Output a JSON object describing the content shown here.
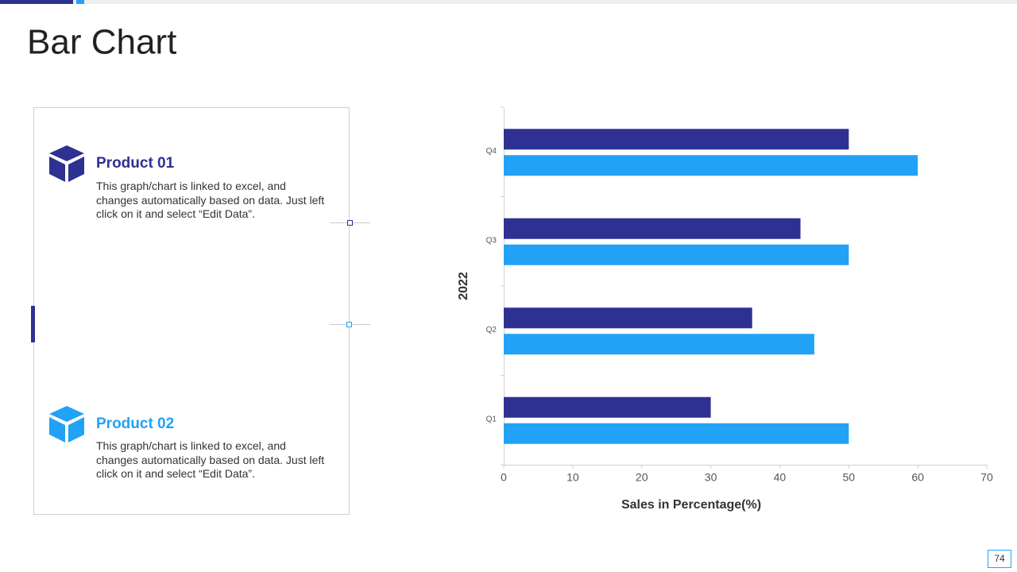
{
  "slide": {
    "title": "Bar Chart",
    "page_number": "74"
  },
  "products": [
    {
      "text": "This graph/chart is linked to excel, and changes automatically based on data. Just left click on it and select “Edit Data”."
    },
    {
      "text": "This graph/chart is linked to excel, and changes automatically based on data. Just left click on it and select “Edit Data”."
    }
  ],
  "chart_data": {
    "type": "hbar",
    "categories": [
      "Q1",
      "Q2",
      "Q3",
      "Q4"
    ],
    "series": [
      {
        "name": "Product 01",
        "color": "#2e3192",
        "values": [
          30,
          36,
          43,
          50
        ]
      },
      {
        "name": "Product 02",
        "color": "#22a2f6",
        "values": [
          50,
          45,
          50,
          60
        ]
      }
    ],
    "xlim": [
      0,
      70
    ],
    "xticks": [
      0,
      10,
      20,
      30,
      40,
      50,
      60,
      70
    ],
    "xlabel": "Sales in Percentage(%)",
    "ylabel": "2022"
  }
}
